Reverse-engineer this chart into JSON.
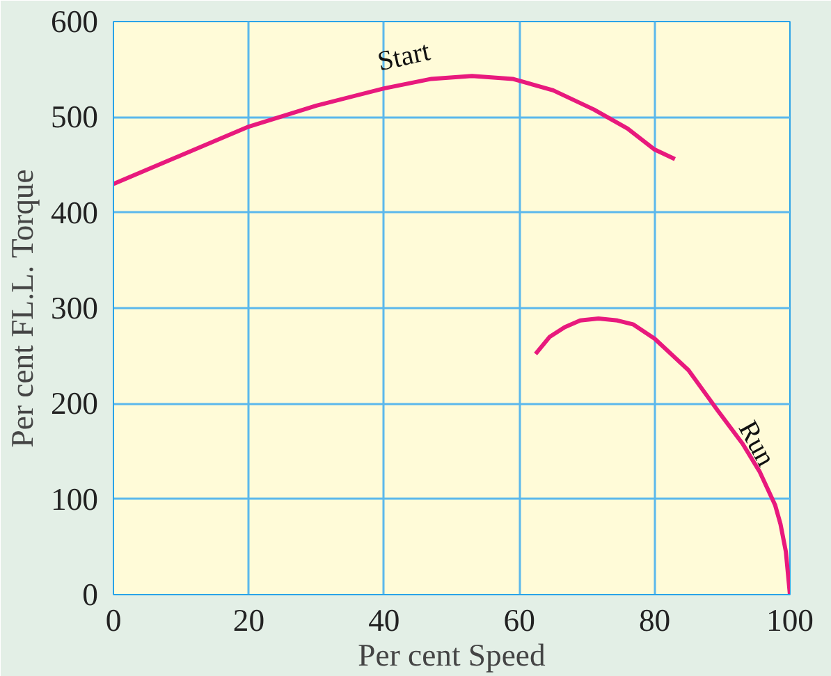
{
  "chart_data": {
    "type": "line",
    "xlabel": "Per cent Speed",
    "ylabel": "Per cent FL.L. Torque",
    "xlim": [
      0,
      100
    ],
    "ylim": [
      0,
      600
    ],
    "xticks": [
      0,
      20,
      40,
      60,
      80,
      100
    ],
    "yticks": [
      0,
      100,
      200,
      300,
      400,
      500,
      600
    ],
    "grid": true,
    "line_style": "solid",
    "marker": "none",
    "series": [
      {
        "name": "Start",
        "color": "#e8197d",
        "x": [
          0,
          10,
          20,
          30,
          40,
          47,
          53,
          59,
          65,
          71,
          76,
          80,
          83
        ],
        "values": [
          430,
          460,
          490,
          512,
          530,
          540,
          543,
          540,
          528,
          508,
          488,
          466,
          456
        ]
      },
      {
        "name": "Run",
        "color": "#e8197d",
        "x": [
          62.4,
          64.5,
          66.7,
          69,
          71.7,
          74.5,
          76.8,
          80,
          85,
          89.3,
          93,
          95.5,
          97.8,
          98.6,
          99.4,
          100
        ],
        "values": [
          252,
          270,
          280,
          287,
          289,
          287,
          283,
          268,
          235,
          193,
          158,
          129,
          94,
          74,
          45,
          0
        ]
      }
    ]
  }
}
